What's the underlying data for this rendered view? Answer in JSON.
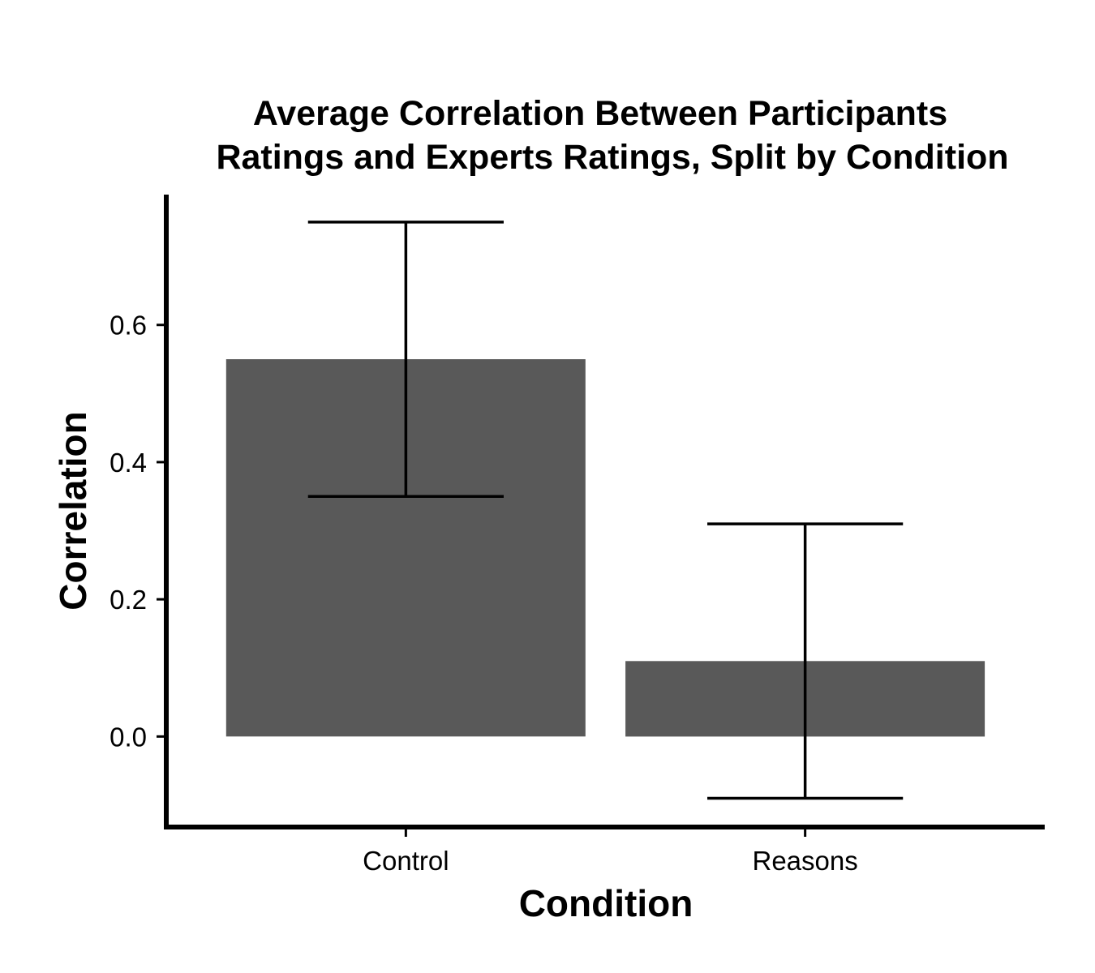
{
  "chart_data": {
    "type": "bar",
    "title_lines": [
      "Average Correlation Between Participants",
      "Ratings and Experts Ratings, Split by Condition"
    ],
    "xlabel": "Condition",
    "ylabel": "Correlation",
    "categories": [
      "Control",
      "Reasons"
    ],
    "values": [
      0.55,
      0.11
    ],
    "error_bars": [
      {
        "lower": 0.35,
        "upper": 0.75
      },
      {
        "lower": -0.09,
        "upper": 0.31
      }
    ],
    "yticks": [
      0.0,
      0.2,
      0.4,
      0.6
    ],
    "ytick_labels": [
      "0.0",
      "0.2",
      "0.4",
      "0.6"
    ],
    "ylim": [
      -0.132,
      0.79
    ],
    "grid": false,
    "colors": {
      "bar": "#595959",
      "axis": "#000000",
      "error_bar": "#000000"
    }
  }
}
